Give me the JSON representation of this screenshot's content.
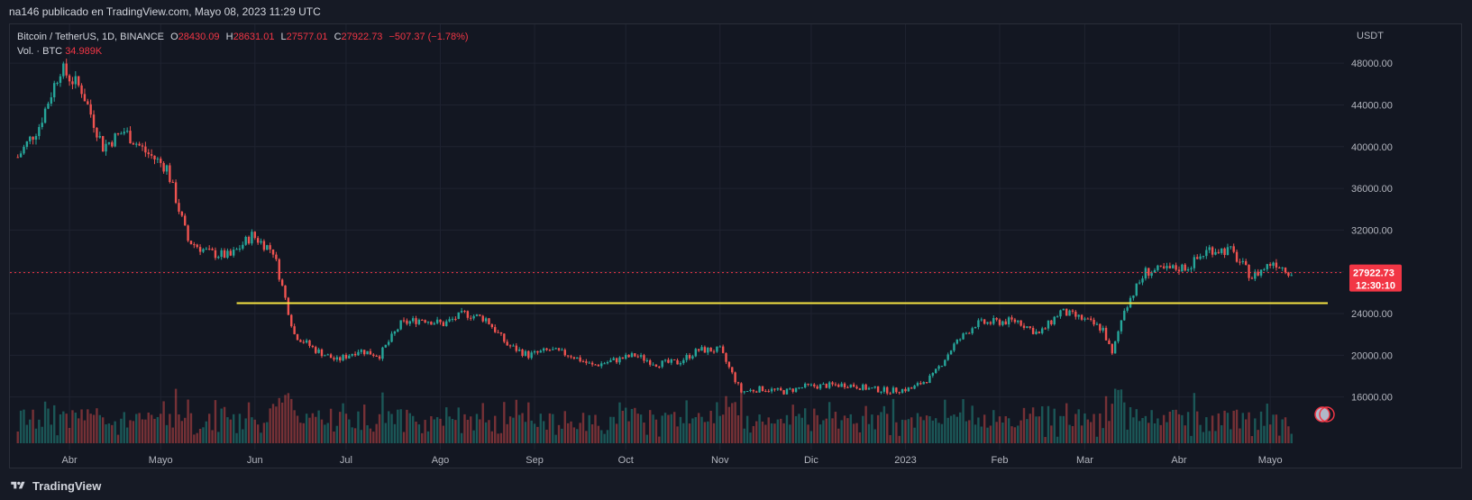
{
  "header": {
    "text": "na146 publicado en TradingView.com, Mayo 08, 2023 11:29 UTC"
  },
  "legend": {
    "symbol": "Bitcoin / TetherUS, 1D, BINANCE",
    "o_label": "O",
    "o": "28430.09",
    "h_label": "H",
    "h": "28631.01",
    "l_label": "L",
    "l": "27577.01",
    "c_label": "C",
    "c": "27922.73",
    "change": "−507.37 (−1.78%)",
    "vol_label": "Vol. · BTC",
    "vol": "34.989K"
  },
  "price_tag": {
    "price": "27922.73",
    "countdown": "12:30:10"
  },
  "footer": {
    "brand": "TradingView"
  },
  "colors": {
    "up": "#26a69a",
    "down": "#ef5350",
    "level": "#f5e342",
    "price_line": "#f23645"
  },
  "chart_data": {
    "type": "candlestick",
    "currency": "USDT",
    "ylim": [
      12000,
      50000
    ],
    "y_ticks": [
      "48000.00",
      "44000.00",
      "40000.00",
      "36000.00",
      "32000.00",
      "28000.00",
      "24000.00",
      "20000.00",
      "16000.00"
    ],
    "x_ticks": [
      "Abr",
      "Mayo",
      "Jun",
      "Jul",
      "Ago",
      "Sep",
      "Oct",
      "Nov",
      "Dic",
      "2023",
      "Feb",
      "Mar",
      "Abr",
      "Mayo"
    ],
    "current_price": 27922.73,
    "horizontal_level": 25000,
    "grid": true,
    "closes": [
      {
        "x": "2022-03-15",
        "close": 39000
      },
      {
        "x": "2022-03-22",
        "close": 42000
      },
      {
        "x": "2022-03-29",
        "close": 47500
      },
      {
        "x": "2022-04-05",
        "close": 45500
      },
      {
        "x": "2022-04-12",
        "close": 40000
      },
      {
        "x": "2022-04-19",
        "close": 41500
      },
      {
        "x": "2022-04-26",
        "close": 39500
      },
      {
        "x": "2022-05-03",
        "close": 38000
      },
      {
        "x": "2022-05-10",
        "close": 31000
      },
      {
        "x": "2022-05-17",
        "close": 29800
      },
      {
        "x": "2022-05-24",
        "close": 29500
      },
      {
        "x": "2022-05-31",
        "close": 31500
      },
      {
        "x": "2022-06-07",
        "close": 30000
      },
      {
        "x": "2022-06-14",
        "close": 22000
      },
      {
        "x": "2022-06-21",
        "close": 20500
      },
      {
        "x": "2022-06-28",
        "close": 19500
      },
      {
        "x": "2022-07-05",
        "close": 20500
      },
      {
        "x": "2022-07-12",
        "close": 20000
      },
      {
        "x": "2022-07-19",
        "close": 23000
      },
      {
        "x": "2022-07-26",
        "close": 23500
      },
      {
        "x": "2022-08-02",
        "close": 23000
      },
      {
        "x": "2022-08-09",
        "close": 24000
      },
      {
        "x": "2022-08-16",
        "close": 23500
      },
      {
        "x": "2022-08-23",
        "close": 21000
      },
      {
        "x": "2022-08-30",
        "close": 20000
      },
      {
        "x": "2022-09-06",
        "close": 20500
      },
      {
        "x": "2022-09-13",
        "close": 20000
      },
      {
        "x": "2022-09-20",
        "close": 19000
      },
      {
        "x": "2022-09-27",
        "close": 19500
      },
      {
        "x": "2022-10-04",
        "close": 20000
      },
      {
        "x": "2022-10-11",
        "close": 19200
      },
      {
        "x": "2022-10-18",
        "close": 19300
      },
      {
        "x": "2022-10-25",
        "close": 20500
      },
      {
        "x": "2022-11-01",
        "close": 20500
      },
      {
        "x": "2022-11-08",
        "close": 16500
      },
      {
        "x": "2022-11-15",
        "close": 16800
      },
      {
        "x": "2022-11-22",
        "close": 16500
      },
      {
        "x": "2022-11-29",
        "close": 17000
      },
      {
        "x": "2022-12-06",
        "close": 17100
      },
      {
        "x": "2022-12-13",
        "close": 17200
      },
      {
        "x": "2022-12-20",
        "close": 16800
      },
      {
        "x": "2022-12-27",
        "close": 16600
      },
      {
        "x": "2023-01-03",
        "close": 16800
      },
      {
        "x": "2023-01-10",
        "close": 18000
      },
      {
        "x": "2023-01-17",
        "close": 21000
      },
      {
        "x": "2023-01-24",
        "close": 23000
      },
      {
        "x": "2023-01-31",
        "close": 23200
      },
      {
        "x": "2023-02-07",
        "close": 23300
      },
      {
        "x": "2023-02-14",
        "close": 22000
      },
      {
        "x": "2023-02-21",
        "close": 24200
      },
      {
        "x": "2023-02-28",
        "close": 23500
      },
      {
        "x": "2023-03-07",
        "close": 22500
      },
      {
        "x": "2023-03-10",
        "close": 20000
      },
      {
        "x": "2023-03-14",
        "close": 24500
      },
      {
        "x": "2023-03-21",
        "close": 28000
      },
      {
        "x": "2023-03-28",
        "close": 28200
      },
      {
        "x": "2023-04-04",
        "close": 28500
      },
      {
        "x": "2023-04-11",
        "close": 30200
      },
      {
        "x": "2023-04-18",
        "close": 30000
      },
      {
        "x": "2023-04-25",
        "close": 27500
      },
      {
        "x": "2023-05-02",
        "close": 29000
      },
      {
        "x": "2023-05-08",
        "close": 27922.73
      }
    ]
  }
}
